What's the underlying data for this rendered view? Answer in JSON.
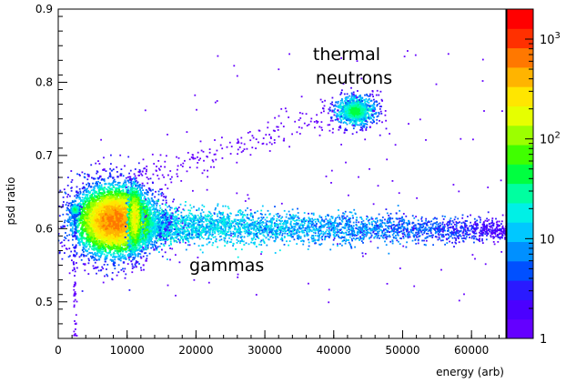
{
  "chart_data": {
    "type": "heatmap",
    "title": "",
    "xlabel": "energy (arb)",
    "ylabel": "psd ratio",
    "xlim": [
      0,
      65000
    ],
    "ylim": [
      0.45,
      0.9
    ],
    "x_ticks": [
      "0",
      "10000",
      "20000",
      "30000",
      "40000",
      "50000",
      "60000"
    ],
    "y_ticks": [
      "0.5",
      "0.6",
      "0.7",
      "0.8",
      "0.9"
    ],
    "colorbar": {
      "scale": "log",
      "range": [
        1,
        2000
      ],
      "tick_labels": [
        "1",
        "10",
        "10",
        "10"
      ],
      "tick_exponents": [
        "",
        "",
        "2",
        "3"
      ],
      "palette": [
        "#6400ff",
        "#4b00ff",
        "#2a1aff",
        "#0050ff",
        "#0090ff",
        "#00c8ff",
        "#00f0e6",
        "#00ffa0",
        "#00ff40",
        "#40ff00",
        "#9cff00",
        "#e6ff00",
        "#ffe600",
        "#ffb400",
        "#ff7800",
        "#ff3000",
        "#ff0000"
      ]
    },
    "annotations": [
      {
        "text_lines": [
          "thermal",
          "neutrons"
        ],
        "near_x": 43000,
        "near_y": 0.76
      },
      {
        "text_lines": [
          "gammas"
        ],
        "near_x": 20000,
        "near_y": 0.55
      }
    ],
    "regions": [
      {
        "label": "gammas-main",
        "x": 8000,
        "y": 0.612,
        "spread_x": 2200,
        "spread_y": 0.018,
        "peak_count": 800
      },
      {
        "label": "gammas-edge",
        "x": 11000,
        "y": 0.615,
        "spread_x": 500,
        "spread_y": 0.02,
        "peak_count": 300
      },
      {
        "label": "gammas-band",
        "x_from": 12000,
        "x_to": 65000,
        "y": 0.605,
        "spread_y": 0.008,
        "count_start": 20,
        "count_end": 2
      },
      {
        "label": "thermal-neutrons",
        "x": 43000,
        "y": 0.762,
        "spread_x": 1300,
        "spread_y": 0.009,
        "peak_count": 60
      },
      {
        "label": "low-energy-spot",
        "x": 2300,
        "y": 0.627,
        "spread_x": 300,
        "spread_y": 0.004,
        "peak_count": 40
      },
      {
        "label": "low-energy-streak",
        "x": 2300,
        "y_from": 0.45,
        "y_to": 0.62,
        "peak_count": 3
      },
      {
        "label": "diagonal-scatter",
        "x_from": 10000,
        "x_to": 40000,
        "y_from": 0.66,
        "y_to": 0.76,
        "peak_count": 1
      }
    ]
  }
}
